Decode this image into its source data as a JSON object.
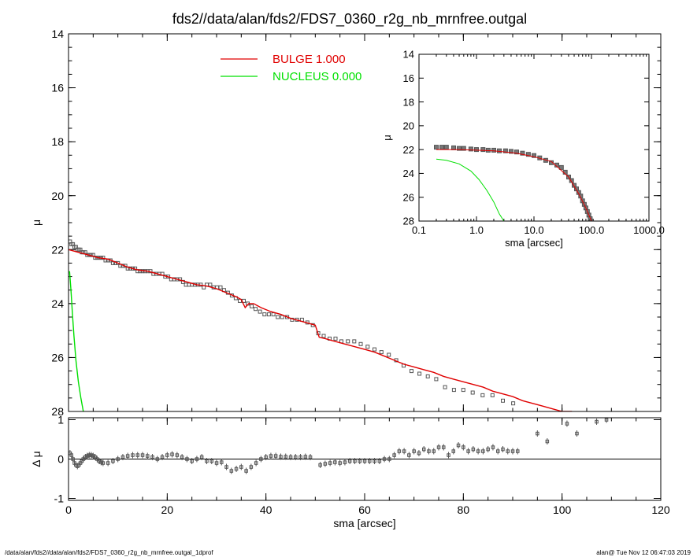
{
  "chart_data": [
    {
      "id": "main",
      "type": "line",
      "title": "fds2//data/alan/fds2/FDS7_0360_r2g_nb_mrnfree.outgal",
      "xlabel": "",
      "ylabel": "μ",
      "xlim": [
        0,
        120
      ],
      "ylim": [
        28,
        14
      ],
      "xticks": [
        0,
        20,
        40,
        60,
        80,
        100,
        120
      ],
      "yticks": [
        14,
        16,
        18,
        20,
        22,
        24,
        26,
        28
      ],
      "legend": [
        {
          "label": "BULGE  1.000",
          "color": "#e00000"
        },
        {
          "label": "NUCLEUS  0.000",
          "color": "#00e000"
        }
      ],
      "series": [
        {
          "name": "data",
          "kind": "points",
          "color": "#555555",
          "x": [
            0.3,
            0.6,
            0.9,
            1.2,
            1.5,
            1.8,
            2.1,
            2.4,
            2.7,
            3.0,
            3.4,
            3.8,
            4.2,
            4.6,
            5.0,
            5.4,
            5.8,
            6.2,
            6.6,
            7.0,
            7.5,
            8.0,
            8.5,
            9.0,
            9.5,
            10.0,
            10.5,
            11.0,
            11.5,
            12.0,
            12.5,
            13.0,
            13.5,
            14.0,
            14.5,
            15.0,
            15.5,
            16.0,
            16.6,
            17.2,
            17.8,
            18.4,
            19.0,
            19.6,
            20.2,
            20.8,
            21.4,
            22.0,
            22.6,
            23.2,
            23.8,
            24.4,
            25.0,
            25.6,
            26.2,
            26.8,
            27.4,
            28.0,
            28.7,
            29.4,
            30.1,
            30.8,
            31.5,
            32.3,
            33.1,
            33.9,
            34.7,
            35.5,
            36.3,
            37.1,
            37.9,
            38.8,
            39.7,
            40.6,
            41.5,
            42.4,
            43.3,
            44.3,
            45.3,
            46.3,
            47.3,
            48.4,
            49.5,
            50.6,
            51.7,
            52.9,
            54.1,
            55.3,
            56.6,
            57.9,
            59.2,
            60.6,
            62.0,
            63.4,
            64.9,
            66.4,
            67.9,
            69.5,
            71.1,
            72.8,
            74.5,
            76.3,
            78.1,
            80.0,
            81.9,
            83.9,
            85.9,
            88.0,
            90.1
          ],
          "y": [
            21.7,
            21.8,
            21.8,
            21.9,
            21.9,
            22.0,
            22.0,
            22.0,
            22.1,
            22.1,
            22.1,
            22.2,
            22.2,
            22.2,
            22.2,
            22.3,
            22.3,
            22.3,
            22.3,
            22.3,
            22.4,
            22.4,
            22.4,
            22.5,
            22.5,
            22.5,
            22.6,
            22.6,
            22.6,
            22.7,
            22.7,
            22.7,
            22.7,
            22.8,
            22.8,
            22.8,
            22.8,
            22.8,
            22.8,
            22.9,
            22.9,
            22.9,
            22.9,
            23.0,
            23.0,
            23.1,
            23.1,
            23.1,
            23.1,
            23.2,
            23.3,
            23.3,
            23.3,
            23.3,
            23.3,
            23.3,
            23.4,
            23.3,
            23.3,
            23.4,
            23.4,
            23.4,
            23.5,
            23.6,
            23.7,
            23.8,
            23.9,
            23.9,
            24.0,
            24.1,
            24.2,
            24.3,
            24.4,
            24.4,
            24.4,
            24.5,
            24.5,
            24.5,
            24.6,
            24.6,
            24.6,
            24.7,
            24.8,
            25.1,
            25.2,
            25.3,
            25.3,
            25.4,
            25.4,
            25.4,
            25.5,
            25.6,
            25.7,
            25.8,
            25.9,
            26.1,
            26.3,
            26.5,
            26.6,
            26.7,
            26.8,
            27.1,
            27.2,
            27.2,
            27.3,
            27.4,
            27.4,
            27.6,
            27.7
          ]
        },
        {
          "name": "BULGE",
          "kind": "line",
          "color": "#e00000",
          "x": [
            0,
            2,
            4,
            6,
            8,
            10,
            12,
            14,
            16,
            18,
            20,
            22,
            24,
            26,
            28,
            30,
            32,
            34,
            35,
            35.8,
            36.5,
            37.5,
            39,
            41,
            43,
            45,
            47,
            49,
            50,
            50.8,
            52,
            54,
            56,
            58,
            60,
            62,
            64,
            66,
            68,
            70,
            72,
            74,
            76,
            78,
            80,
            82,
            84,
            86,
            88,
            90,
            92,
            94,
            96,
            98,
            100,
            102
          ],
          "y": [
            22.0,
            22.1,
            22.2,
            22.3,
            22.35,
            22.5,
            22.65,
            22.75,
            22.8,
            22.9,
            23.0,
            23.1,
            23.2,
            23.3,
            23.35,
            23.45,
            23.6,
            23.75,
            23.85,
            24.15,
            24.0,
            24.0,
            24.15,
            24.3,
            24.4,
            24.55,
            24.65,
            24.75,
            24.8,
            25.25,
            25.3,
            25.4,
            25.5,
            25.6,
            25.7,
            25.8,
            25.95,
            26.1,
            26.25,
            26.35,
            26.45,
            26.55,
            26.7,
            26.8,
            26.9,
            27.0,
            27.1,
            27.25,
            27.35,
            27.45,
            27.6,
            27.7,
            27.8,
            27.9,
            28.0,
            28.0
          ]
        },
        {
          "name": "NUCLEUS",
          "kind": "line",
          "color": "#00e000",
          "x": [
            0.2,
            0.5,
            0.8,
            1.1,
            1.5,
            2.0,
            2.5,
            3.0
          ],
          "y": [
            22.8,
            23.5,
            24.4,
            25.2,
            26.1,
            26.9,
            27.5,
            28.0
          ]
        }
      ]
    },
    {
      "id": "inset",
      "type": "line",
      "xscale": "log",
      "xlabel": "sma [arcsec]",
      "ylabel": "μ",
      "xlim": [
        0.1,
        1000
      ],
      "ylim": [
        28,
        14
      ],
      "xticks": [
        0.1,
        1.0,
        10.0,
        100.0,
        1000.0
      ],
      "xtick_labels": [
        "0.1",
        "1.0",
        "10.0",
        "100.0",
        "1000.0"
      ],
      "yticks": [
        14,
        16,
        18,
        20,
        22,
        24,
        26,
        28
      ],
      "series": [
        {
          "name": "data",
          "kind": "points",
          "color": "#555555",
          "x": [
            0.2,
            0.25,
            0.3,
            0.4,
            0.5,
            0.6,
            0.8,
            1.0,
            1.3,
            1.6,
            2.0,
            2.5,
            3.2,
            4,
            5,
            6.3,
            8,
            10,
            12.6,
            16,
            20,
            25,
            30,
            35,
            40,
            45,
            50,
            55,
            60,
            65,
            70,
            75,
            80,
            85,
            90,
            95,
            100
          ],
          "y": [
            21.8,
            21.8,
            21.8,
            21.85,
            21.9,
            21.9,
            21.95,
            22.0,
            22.0,
            22.05,
            22.05,
            22.1,
            22.1,
            22.15,
            22.2,
            22.3,
            22.4,
            22.5,
            22.7,
            22.9,
            23.1,
            23.3,
            23.5,
            23.9,
            24.3,
            24.6,
            25.0,
            25.3,
            25.6,
            25.9,
            26.3,
            26.6,
            26.9,
            27.2,
            27.5,
            27.8,
            28.0
          ]
        },
        {
          "name": "BULGE",
          "kind": "line",
          "color": "#e00000",
          "x": [
            0.2,
            0.5,
            1.0,
            2.0,
            5.0,
            10,
            20,
            40,
            60,
            80,
            100
          ],
          "y": [
            22.0,
            22.0,
            22.05,
            22.1,
            22.3,
            22.6,
            23.0,
            24.3,
            25.7,
            26.9,
            28.0
          ]
        },
        {
          "name": "NUCLEUS",
          "kind": "line",
          "color": "#00e000",
          "x": [
            0.2,
            0.3,
            0.5,
            0.8,
            1.1,
            1.5,
            2.0,
            2.5,
            3.0
          ],
          "y": [
            22.8,
            22.9,
            23.2,
            23.8,
            24.5,
            25.4,
            26.4,
            27.4,
            28.0
          ]
        }
      ]
    },
    {
      "id": "residual",
      "type": "scatter",
      "xlabel": "sma [arcsec]",
      "ylabel": "Δ μ",
      "xlim": [
        0,
        120
      ],
      "ylim": [
        -1.05,
        1.05
      ],
      "xticks": [
        0,
        20,
        40,
        60,
        80,
        100,
        120
      ],
      "yticks": [
        -1,
        0,
        1
      ],
      "series": [
        {
          "name": "residual",
          "kind": "points",
          "color": "#555555",
          "x": [
            0.3,
            0.6,
            0.9,
            1.2,
            1.5,
            1.8,
            2.1,
            2.4,
            2.7,
            3.0,
            3.4,
            3.8,
            4.2,
            4.6,
            5.0,
            5.4,
            5.8,
            6.2,
            6.6,
            7.0,
            8.0,
            9.0,
            10.0,
            11.0,
            12.0,
            13.0,
            14.0,
            15.0,
            16.0,
            17.0,
            18.0,
            19.0,
            20.0,
            21.0,
            22.0,
            23.0,
            24.0,
            25.0,
            26.0,
            27.0,
            28.0,
            29.0,
            30.0,
            31.0,
            32.0,
            33.0,
            34.0,
            35.0,
            36.0,
            37.0,
            38.0,
            39.0,
            40.0,
            41.0,
            42.0,
            43.0,
            44.0,
            45.0,
            46.0,
            47.0,
            48.0,
            49.0,
            51.0,
            52.0,
            53.0,
            54.0,
            55.0,
            56.0,
            57.0,
            58.0,
            59.0,
            60.0,
            61.0,
            62.0,
            63.0,
            64.0,
            65.0,
            66.0,
            67.0,
            68.0,
            69.0,
            70.0,
            71.0,
            72.0,
            73.0,
            74.0,
            75.0,
            76.0,
            77.0,
            78.0,
            79.0,
            80.0,
            81.0,
            82.0,
            83.0,
            84.0,
            85.0,
            86.0,
            87.0,
            88.0,
            89.0,
            90.0,
            91.0,
            95.0,
            97.0,
            101.0,
            103.0,
            107.0,
            109.0
          ],
          "y": [
            0.15,
            0.1,
            0.0,
            -0.1,
            -0.15,
            -0.18,
            -0.15,
            -0.1,
            -0.05,
            0.0,
            0.05,
            0.08,
            0.1,
            0.1,
            0.08,
            0.05,
            0.0,
            -0.05,
            -0.08,
            -0.1,
            -0.1,
            -0.05,
            0.0,
            0.05,
            0.08,
            0.1,
            0.1,
            0.1,
            0.08,
            0.05,
            0.0,
            0.05,
            0.1,
            0.12,
            0.1,
            0.05,
            0.0,
            -0.05,
            0.0,
            0.05,
            -0.05,
            -0.05,
            -0.1,
            -0.08,
            -0.2,
            -0.3,
            -0.25,
            -0.2,
            -0.3,
            -0.2,
            -0.1,
            0.0,
            0.05,
            0.08,
            0.08,
            0.06,
            0.06,
            0.05,
            0.05,
            0.05,
            0.06,
            0.05,
            -0.15,
            -0.12,
            -0.1,
            -0.08,
            -0.1,
            -0.08,
            -0.05,
            -0.05,
            -0.05,
            -0.05,
            -0.05,
            -0.05,
            -0.05,
            0.0,
            0.0,
            0.1,
            0.2,
            0.2,
            0.1,
            0.2,
            0.15,
            0.25,
            0.2,
            0.2,
            0.3,
            0.3,
            0.1,
            0.2,
            0.35,
            0.3,
            0.2,
            0.25,
            0.2,
            0.2,
            0.25,
            0.3,
            0.2,
            0.25,
            0.2,
            0.2,
            0.2,
            0.65,
            0.45,
            0.9,
            0.65,
            0.95,
            1.0
          ]
        }
      ]
    }
  ],
  "footer": {
    "left": "/data/alan/fds2//data/alan/fds2/FDS7_0360_r2g_nb_mrnfree.outgal_1dprof",
    "right": "alan@  Tue Nov 12 06:47:03 2019"
  }
}
